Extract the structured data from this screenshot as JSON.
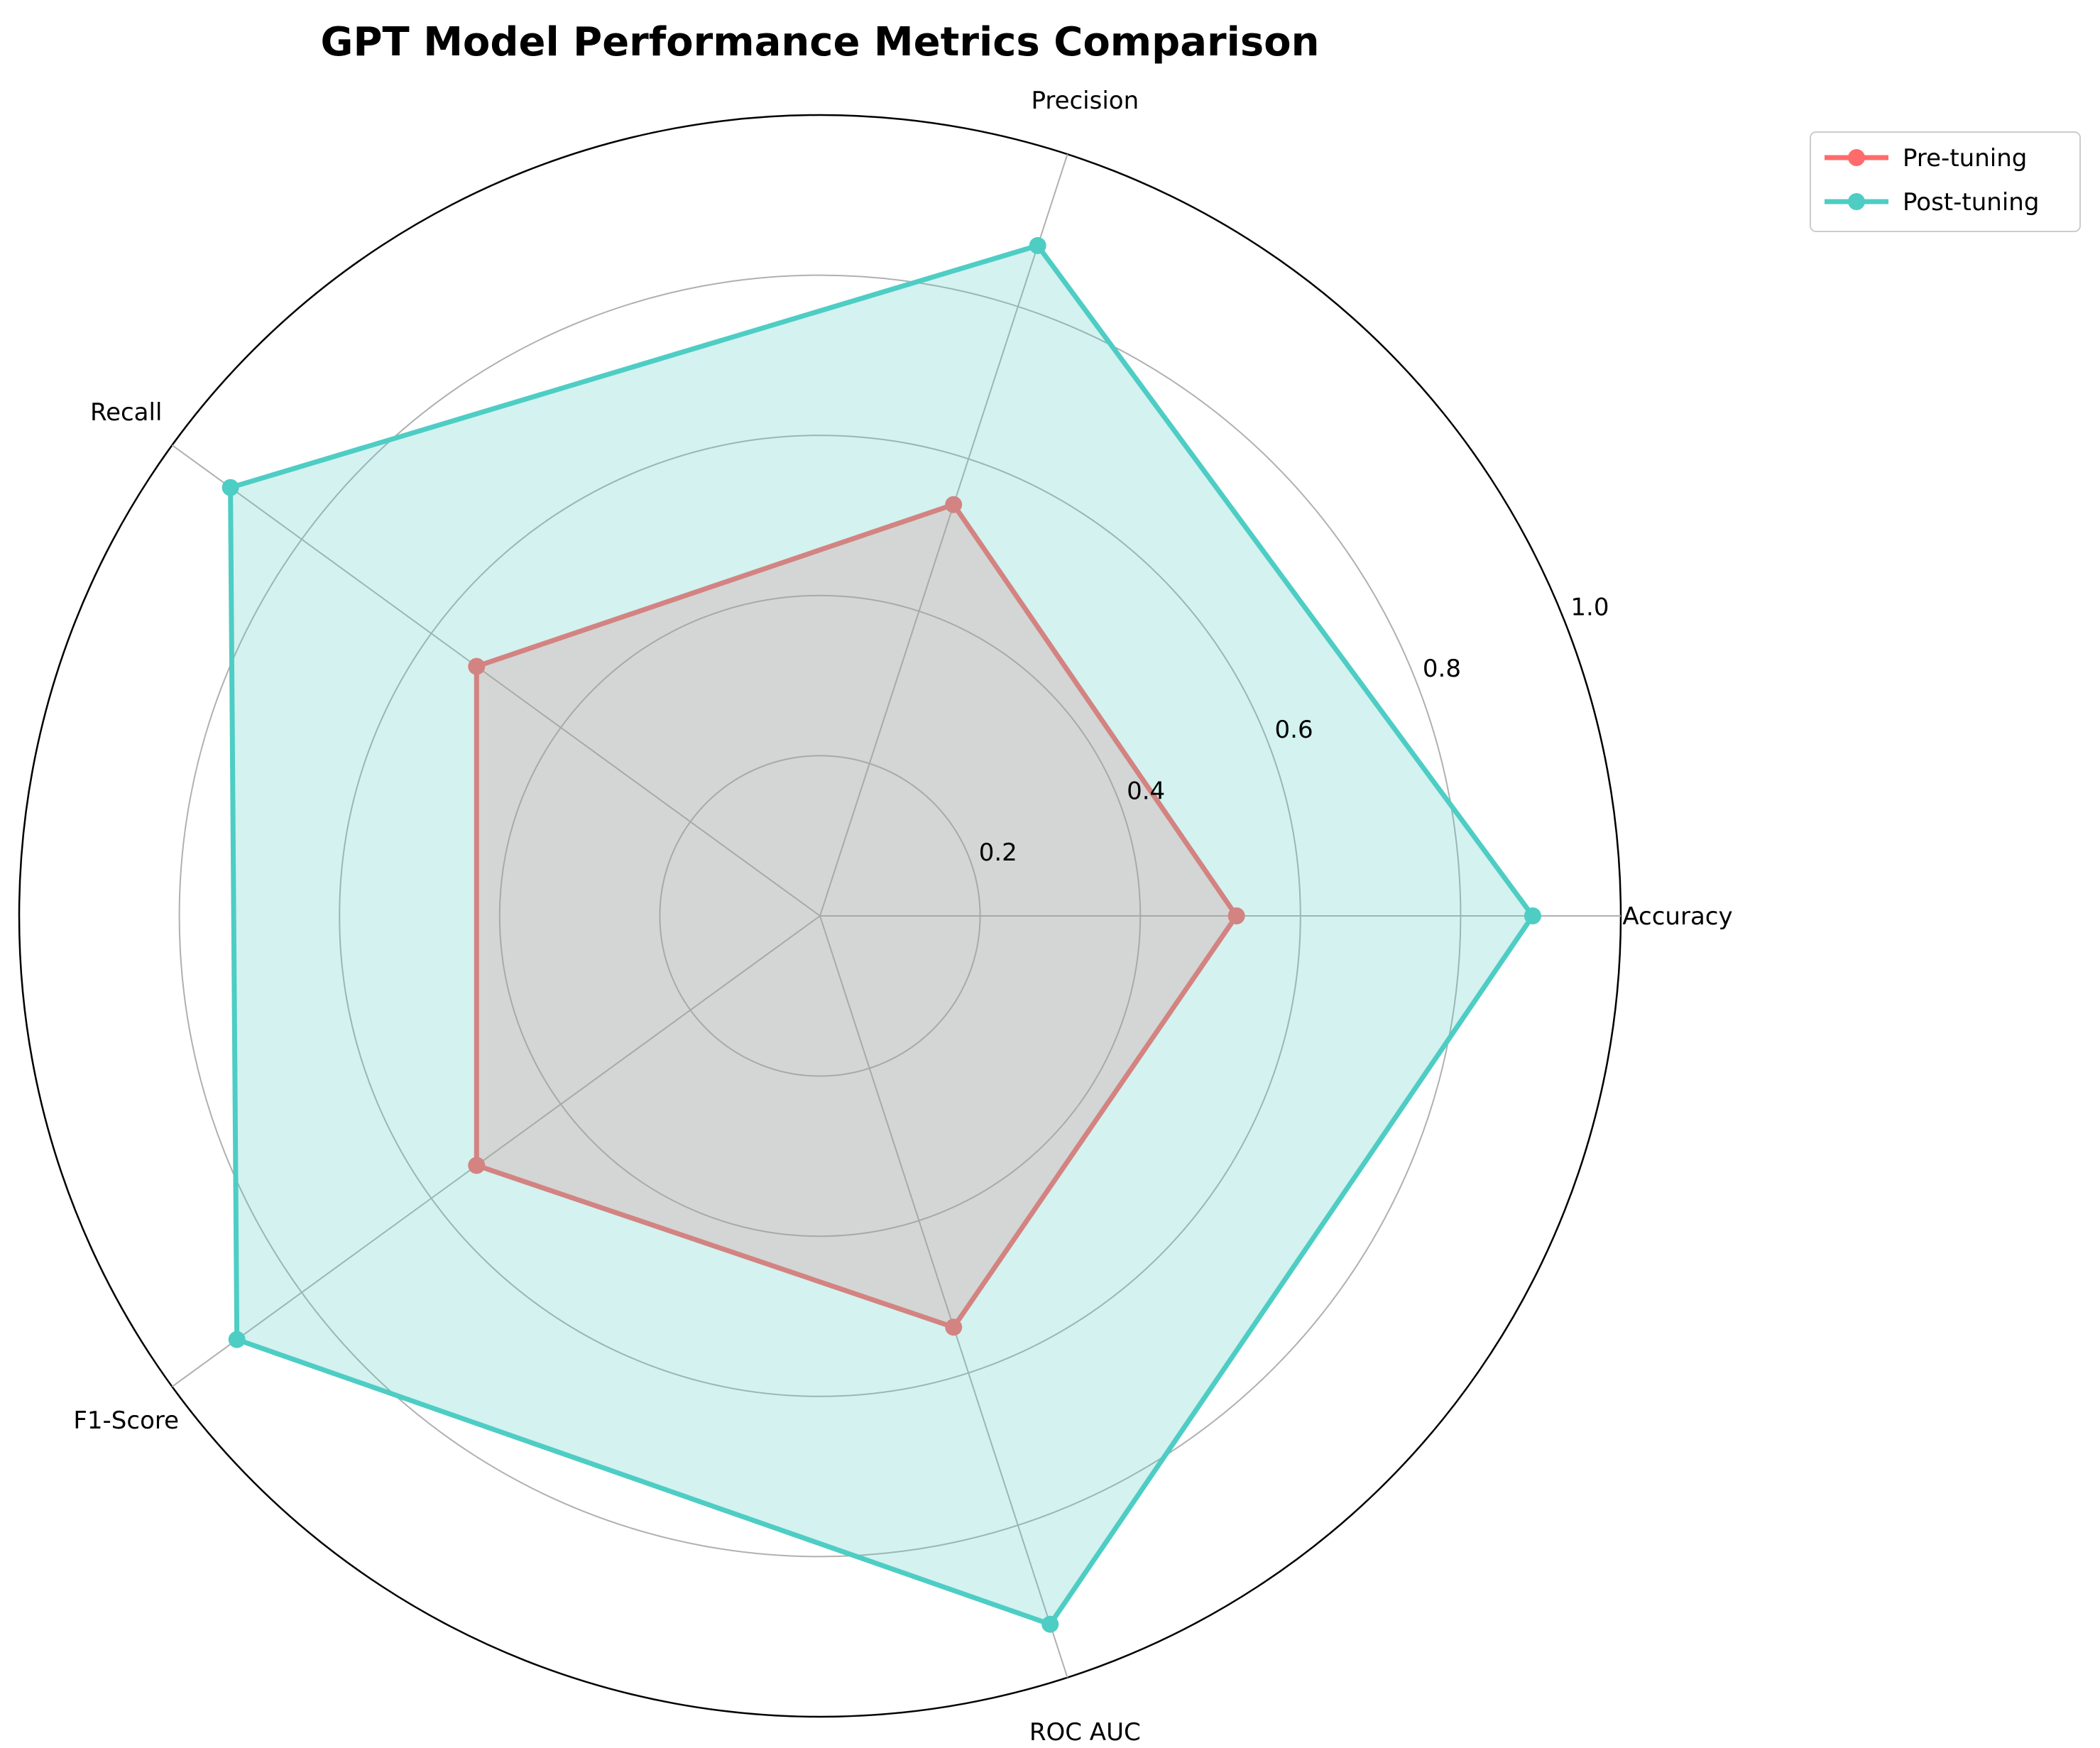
{
  "chart_data": {
    "type": "radar",
    "title": "GPT Model Performance Metrics Comparison",
    "categories": [
      "Accuracy",
      "Precision",
      "Recall",
      "F1-Score",
      "ROC AUC"
    ],
    "series": [
      {
        "name": "Pre-tuning",
        "color": "#ff6b6b",
        "values": [
          0.52,
          0.54,
          0.53,
          0.53,
          0.54
        ]
      },
      {
        "name": "Post-tuning",
        "color": "#4ecdc4",
        "values": [
          0.89,
          0.88,
          0.91,
          0.9,
          0.93
        ]
      }
    ],
    "rlim": [
      0,
      1.0
    ],
    "rticks": [
      "0.2",
      "0.4",
      "0.6",
      "0.8",
      "1.0"
    ],
    "grid": true,
    "legend": "top-right"
  }
}
